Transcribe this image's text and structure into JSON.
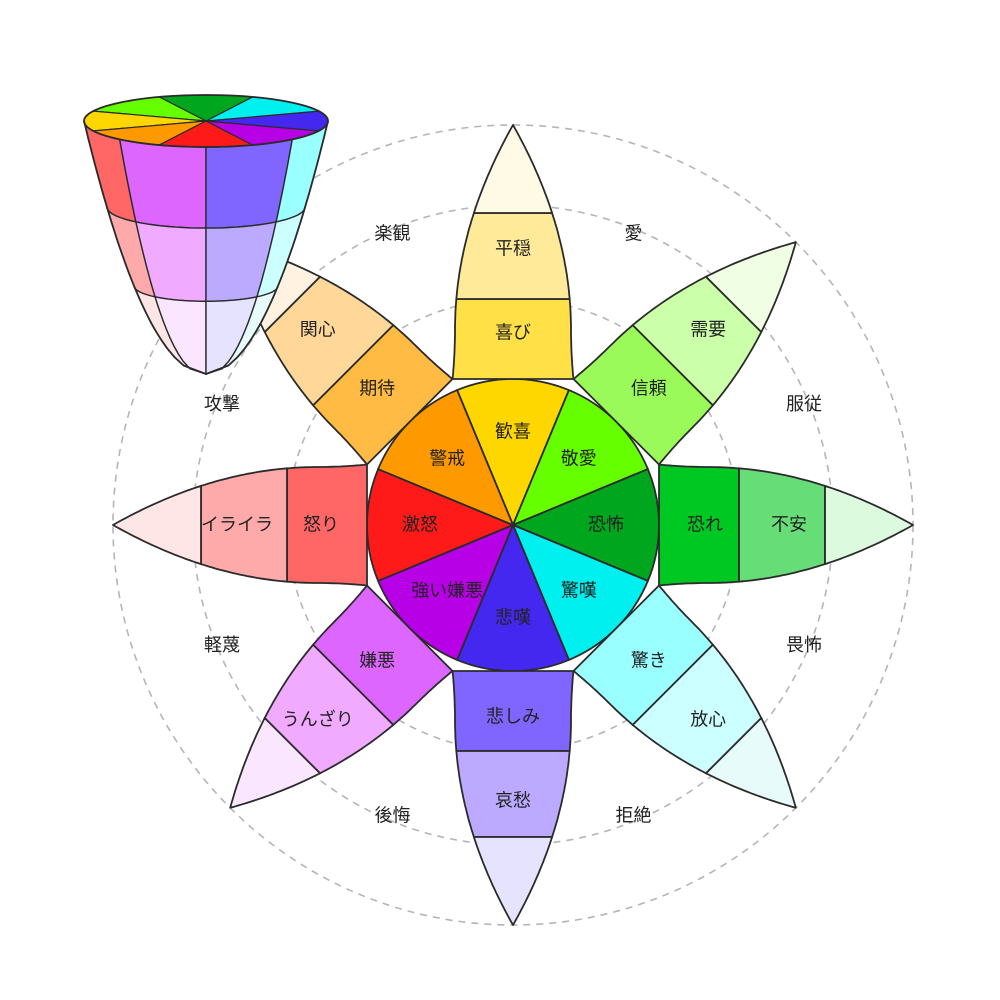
{
  "petals": [
    {
      "key": "joy",
      "colors": [
        "#ffd700",
        "#ffe047",
        "#ffea99",
        "#fffae6"
      ],
      "labels": [
        "歓喜",
        "喜び",
        "平穏"
      ]
    },
    {
      "key": "trust",
      "colors": [
        "#66ff00",
        "#9afa5a",
        "#ccffaa",
        "#f0ffe4"
      ],
      "labels": [
        "敬愛",
        "信頼",
        "需要"
      ]
    },
    {
      "key": "fear",
      "colors": [
        "#00a61e",
        "#00c822",
        "#66dd77",
        "#dcfadd"
      ],
      "labels": [
        "恐怖",
        "恐れ",
        "不安"
      ]
    },
    {
      "key": "surprise",
      "colors": [
        "#00f0f0",
        "#99ffff",
        "#ccffff",
        "#e8fbfb"
      ],
      "labels": [
        "驚嘆",
        "驚き",
        "放心"
      ]
    },
    {
      "key": "sadness",
      "colors": [
        "#4428f0",
        "#8066ff",
        "#bbaaff",
        "#e6e3ff"
      ],
      "labels": [
        "悲嘆",
        "悲しみ",
        "哀愁"
      ]
    },
    {
      "key": "disgust",
      "colors": [
        "#b800e6",
        "#dd66ff",
        "#f0aaff",
        "#fbe6ff"
      ],
      "labels": [
        "強い嫌悪",
        "嫌悪",
        "うんざり"
      ]
    },
    {
      "key": "anger",
      "colors": [
        "#ff1a1a",
        "#ff6666",
        "#ffaaaa",
        "#ffe6e6"
      ],
      "labels": [
        "激怒",
        "怒り",
        "イライラ"
      ]
    },
    {
      "key": "anticipation",
      "colors": [
        "#ff9900",
        "#ffbb44",
        "#ffd799",
        "#fff2e0"
      ],
      "labels": [
        "警戒",
        "期待",
        "関心"
      ]
    }
  ],
  "dyads": [
    "愛",
    "服従",
    "畏怖",
    "拒絶",
    "後悔",
    "軽蔑",
    "攻撃",
    "楽観"
  ],
  "ring_stroke": "#b5b5b5",
  "outline_color": "#2b2b2b"
}
